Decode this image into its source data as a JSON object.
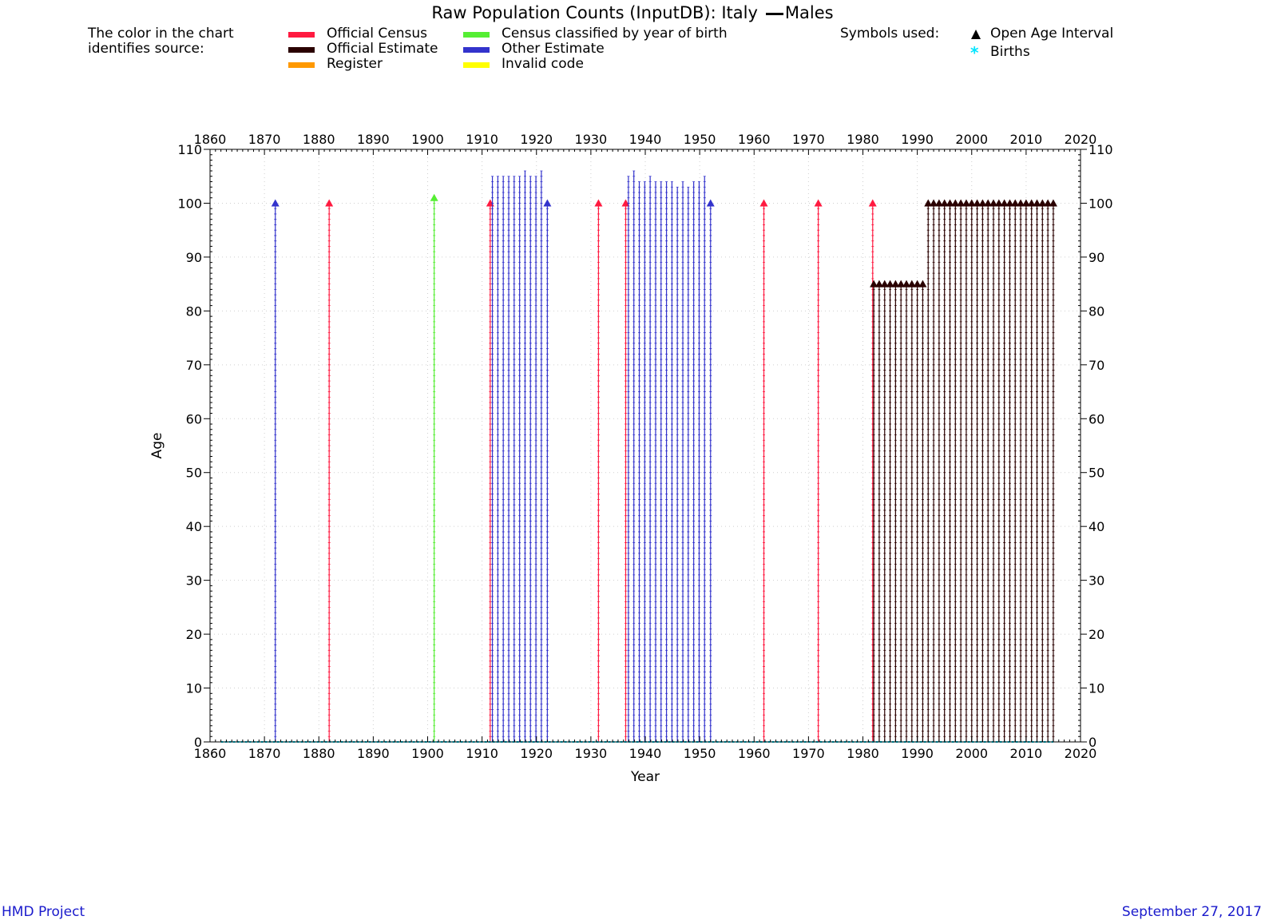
{
  "title": {
    "text": "Raw Population Counts (InputDB): Italy",
    "sex": "Males"
  },
  "legend": {
    "intro": [
      "The color in the chart",
      "identifies source:"
    ],
    "sources": [
      {
        "label": "Official Census",
        "color": "#ff1a40"
      },
      {
        "label": "Official Estimate",
        "color": "#2a0000"
      },
      {
        "label": "Register",
        "color": "#ff9900"
      },
      {
        "label": "Census classified by year of birth",
        "color": "#55ee33"
      },
      {
        "label": "Other Estimate",
        "color": "#3333cc"
      },
      {
        "label": "Invalid code",
        "color": "#ffff00"
      }
    ],
    "symbols_heading": "Symbols used:",
    "symbols": [
      {
        "label": "Open Age Interval",
        "icon": "triangle-icon",
        "color": "#000000"
      },
      {
        "label": "Births",
        "icon": "asterisk-icon",
        "color": "#00e5ff"
      }
    ]
  },
  "chart_data": {
    "type": "line",
    "xlabel": "Year",
    "ylabel": "Age",
    "xlim": [
      1860,
      2020
    ],
    "ylim": [
      0,
      110
    ],
    "xticks": [
      1860,
      1870,
      1880,
      1890,
      1900,
      1910,
      1920,
      1930,
      1940,
      1950,
      1960,
      1970,
      1980,
      1990,
      2000,
      2010,
      2020
    ],
    "yticks": [
      0,
      10,
      20,
      30,
      40,
      50,
      60,
      70,
      80,
      90,
      100,
      110
    ],
    "grid": true,
    "series": [
      {
        "name": "Official Census",
        "color": "#ff1a40",
        "points": [
          {
            "year": 1881.9,
            "top": 100,
            "open": true
          },
          {
            "year": 1911.5,
            "top": 100,
            "open": true
          },
          {
            "year": 1931.4,
            "top": 100,
            "open": true
          },
          {
            "year": 1936.4,
            "top": 100,
            "open": true
          },
          {
            "year": 1961.8,
            "top": 100,
            "open": true
          },
          {
            "year": 1971.8,
            "top": 100,
            "open": true
          },
          {
            "year": 1981.8,
            "top": 100,
            "open": true
          }
        ]
      },
      {
        "name": "Census classified by year of birth",
        "color": "#55ee33",
        "points": [
          {
            "year": 1901.2,
            "top": 101,
            "open": true
          }
        ]
      },
      {
        "name": "Other Estimate",
        "color": "#3333cc",
        "points": [
          {
            "year": 1872.0,
            "top": 100,
            "open": true
          },
          {
            "year": 1911.9,
            "top": 105,
            "open": false
          },
          {
            "year": 1912.9,
            "top": 105,
            "open": false
          },
          {
            "year": 1913.9,
            "top": 105,
            "open": false
          },
          {
            "year": 1914.9,
            "top": 105,
            "open": false
          },
          {
            "year": 1915.9,
            "top": 105,
            "open": false
          },
          {
            "year": 1916.9,
            "top": 105,
            "open": false
          },
          {
            "year": 1917.9,
            "top": 106,
            "open": false
          },
          {
            "year": 1918.9,
            "top": 105,
            "open": false
          },
          {
            "year": 1919.9,
            "top": 105,
            "open": false
          },
          {
            "year": 1920.9,
            "top": 106,
            "open": false
          },
          {
            "year": 1922.0,
            "top": 100,
            "open": true
          },
          {
            "year": 1936.9,
            "top": 105,
            "open": false
          },
          {
            "year": 1937.9,
            "top": 106,
            "open": false
          },
          {
            "year": 1938.9,
            "top": 104,
            "open": false
          },
          {
            "year": 1939.9,
            "top": 104,
            "open": false
          },
          {
            "year": 1940.9,
            "top": 105,
            "open": false
          },
          {
            "year": 1941.9,
            "top": 104,
            "open": false
          },
          {
            "year": 1942.9,
            "top": 104,
            "open": false
          },
          {
            "year": 1943.9,
            "top": 104,
            "open": false
          },
          {
            "year": 1944.9,
            "top": 104,
            "open": false
          },
          {
            "year": 1945.9,
            "top": 103,
            "open": false
          },
          {
            "year": 1946.9,
            "top": 104,
            "open": false
          },
          {
            "year": 1947.9,
            "top": 103,
            "open": false
          },
          {
            "year": 1948.9,
            "top": 104,
            "open": false
          },
          {
            "year": 1949.9,
            "top": 104,
            "open": false
          },
          {
            "year": 1950.9,
            "top": 105,
            "open": false
          },
          {
            "year": 1952.0,
            "top": 100,
            "open": true
          }
        ]
      },
      {
        "name": "Official Estimate",
        "color": "#2a0000",
        "points": [
          {
            "year": 1982,
            "top": 85,
            "open": true
          },
          {
            "year": 1983,
            "top": 85,
            "open": true
          },
          {
            "year": 1984,
            "top": 85,
            "open": true
          },
          {
            "year": 1985,
            "top": 85,
            "open": true
          },
          {
            "year": 1986,
            "top": 85,
            "open": true
          },
          {
            "year": 1987,
            "top": 85,
            "open": true
          },
          {
            "year": 1988,
            "top": 85,
            "open": true
          },
          {
            "year": 1989,
            "top": 85,
            "open": true
          },
          {
            "year": 1990,
            "top": 85,
            "open": true
          },
          {
            "year": 1991,
            "top": 85,
            "open": true
          },
          {
            "year": 1992,
            "top": 100,
            "open": true
          },
          {
            "year": 1993,
            "top": 100,
            "open": true
          },
          {
            "year": 1994,
            "top": 100,
            "open": true
          },
          {
            "year": 1995,
            "top": 100,
            "open": true
          },
          {
            "year": 1996,
            "top": 100,
            "open": true
          },
          {
            "year": 1997,
            "top": 100,
            "open": true
          },
          {
            "year": 1998,
            "top": 100,
            "open": true
          },
          {
            "year": 1999,
            "top": 100,
            "open": true
          },
          {
            "year": 2000,
            "top": 100,
            "open": true
          },
          {
            "year": 2001,
            "top": 100,
            "open": true
          },
          {
            "year": 2002,
            "top": 100,
            "open": true
          },
          {
            "year": 2003,
            "top": 100,
            "open": true
          },
          {
            "year": 2004,
            "top": 100,
            "open": true
          },
          {
            "year": 2005,
            "top": 100,
            "open": true
          },
          {
            "year": 2006,
            "top": 100,
            "open": true
          },
          {
            "year": 2007,
            "top": 100,
            "open": true
          },
          {
            "year": 2008,
            "top": 100,
            "open": true
          },
          {
            "year": 2009,
            "top": 100,
            "open": true
          },
          {
            "year": 2010,
            "top": 100,
            "open": true
          },
          {
            "year": 2011,
            "top": 100,
            "open": true
          },
          {
            "year": 2012,
            "top": 100,
            "open": true
          },
          {
            "year": 2013,
            "top": 100,
            "open": true
          },
          {
            "year": 2014,
            "top": 100,
            "open": true
          },
          {
            "year": 2015,
            "top": 100,
            "open": true
          }
        ]
      }
    ],
    "births": {
      "name": "Births",
      "color": "#00e5ff",
      "age": 0,
      "from": 1862,
      "to": 2015
    }
  },
  "footer": {
    "left": "HMD Project",
    "right": "September 27, 2017"
  }
}
